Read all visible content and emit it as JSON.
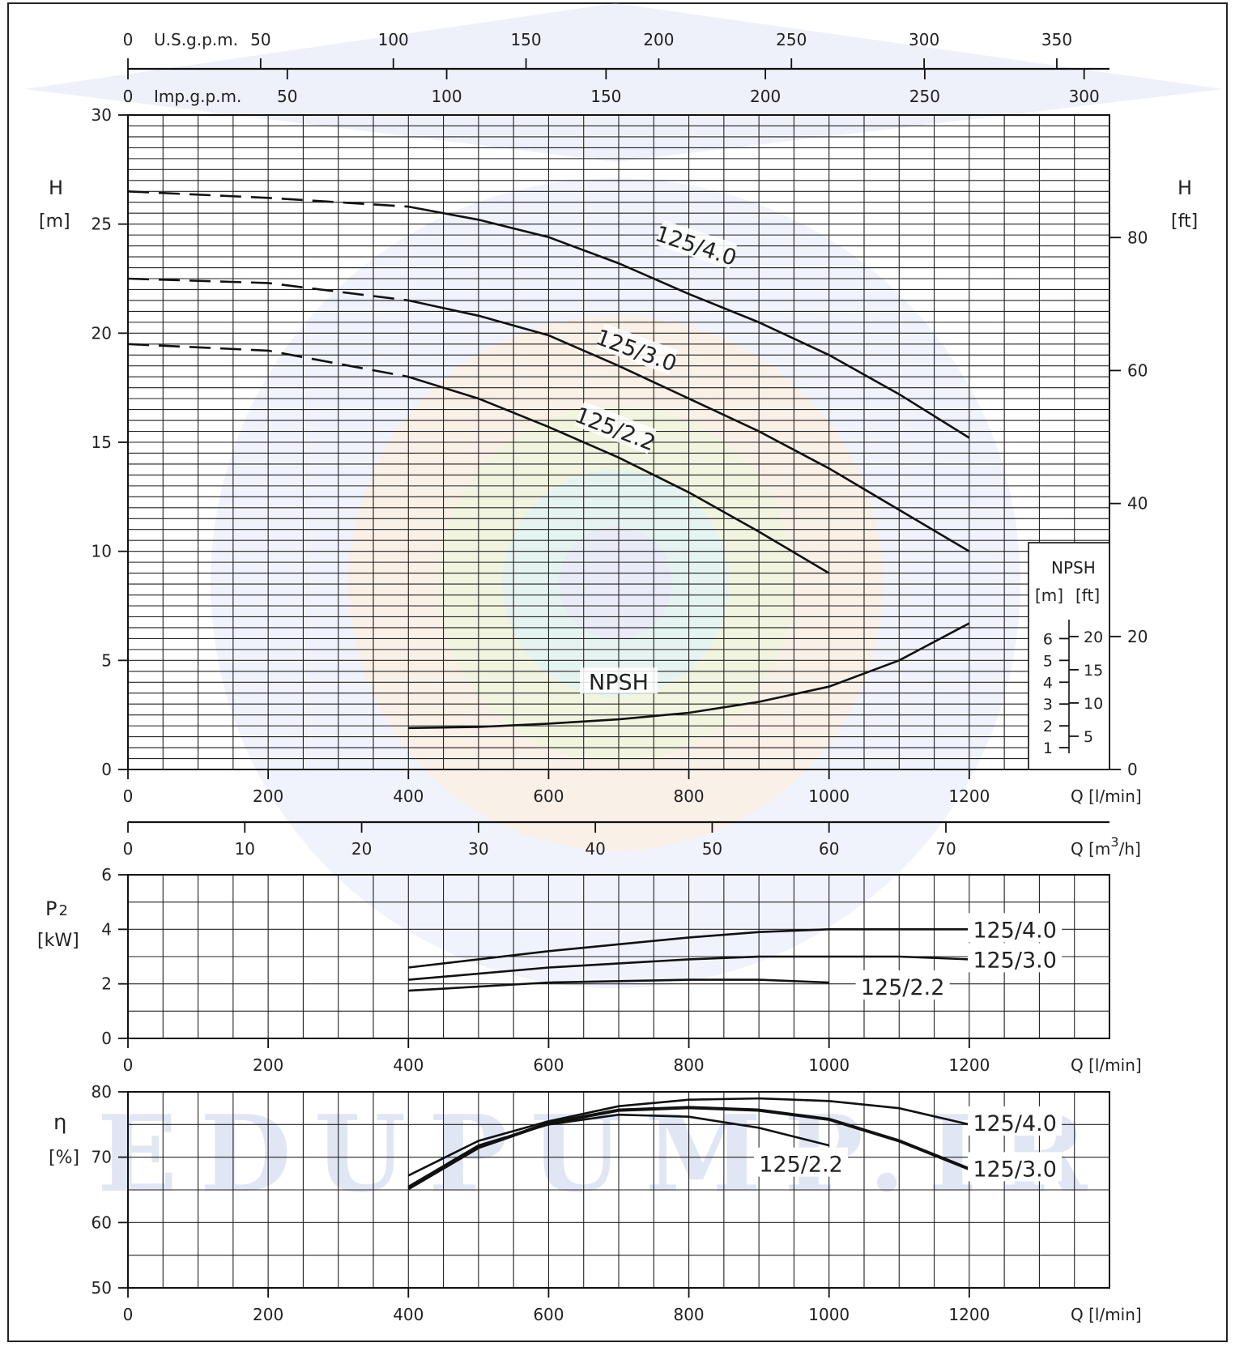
{
  "watermark": {
    "text": "EDUPUMP.IR"
  },
  "top_axes": {
    "usgpm": {
      "unit": "U.S.g.p.m.",
      "ticks": [
        "0",
        "50",
        "100",
        "150",
        "200",
        "250",
        "300",
        "350"
      ]
    },
    "impgpm": {
      "unit": "Imp.g.p.m.",
      "ticks": [
        "0",
        "50",
        "100",
        "150",
        "200",
        "250",
        "300"
      ]
    }
  },
  "head_chart": {
    "ylabel_symbol": "H",
    "ylabel_unit": "[m]",
    "ylabel_right_symbol": "H",
    "ylabel_right_unit": "[ft]",
    "yticks": [
      "0",
      "5",
      "10",
      "15",
      "20",
      "25",
      "30"
    ],
    "ft_ticks": [
      "0",
      "20",
      "40",
      "60",
      "80"
    ],
    "xticks": [
      "0",
      "200",
      "400",
      "600",
      "800",
      "1000",
      "1200"
    ],
    "xlabel": "Q [l/min]",
    "m3h_ticks": [
      "0",
      "10",
      "20",
      "30",
      "40",
      "50",
      "60",
      "70"
    ],
    "m3h_label": "Q [m",
    "m3h_sup": "3",
    "m3h_end": "/h]",
    "npsh_box": {
      "title": "NPSH",
      "unit_m": "[m]",
      "unit_ft": "[ft]",
      "m_ticks": [
        "1",
        "2",
        "3",
        "4",
        "5",
        "6"
      ],
      "ft_ticks": [
        "5",
        "10",
        "15",
        "20"
      ]
    }
  },
  "power_chart": {
    "ylabel_symbol": "P",
    "ylabel_sub": "2",
    "ylabel_unit": "[kW]",
    "yticks": [
      "0",
      "2",
      "4",
      "6"
    ],
    "xticks": [
      "0",
      "200",
      "400",
      "600",
      "800",
      "1000",
      "1200"
    ],
    "xlabel": "Q [l/min]"
  },
  "eff_chart": {
    "ylabel_symbol": "η",
    "ylabel_unit": "[%]",
    "yticks": [
      "50",
      "60",
      "70",
      "80"
    ],
    "xticks": [
      "0",
      "200",
      "400",
      "600",
      "800",
      "1000",
      "1200"
    ],
    "xlabel": "Q [l/min]"
  },
  "chart_data": [
    {
      "type": "line",
      "xlabel": "Q [l/min]",
      "ylabel": "H [m]",
      "xlim": [
        0,
        1400
      ],
      "ylim": [
        0,
        30
      ],
      "grid": true,
      "series": [
        {
          "name": "125/4.0",
          "dashed_x": [
            0,
            200,
            400
          ],
          "dashed_y": [
            26.5,
            26.2,
            25.8
          ],
          "x": [
            400,
            500,
            600,
            700,
            800,
            900,
            1000,
            1100,
            1200
          ],
          "y": [
            25.8,
            25.2,
            24.4,
            23.2,
            21.8,
            20.5,
            19.0,
            17.2,
            15.2
          ]
        },
        {
          "name": "125/3.0",
          "dashed_x": [
            0,
            200,
            400
          ],
          "dashed_y": [
            22.5,
            22.3,
            21.5
          ],
          "x": [
            400,
            500,
            600,
            700,
            800,
            900,
            1000,
            1100,
            1200
          ],
          "y": [
            21.5,
            20.8,
            19.9,
            18.5,
            17.0,
            15.5,
            13.8,
            11.9,
            10.0
          ]
        },
        {
          "name": "125/2.2",
          "dashed_x": [
            0,
            200,
            400
          ],
          "dashed_y": [
            19.5,
            19.2,
            18.0
          ],
          "x": [
            400,
            500,
            600,
            700,
            800,
            900,
            1000
          ],
          "y": [
            18.0,
            17.0,
            15.7,
            14.3,
            12.7,
            10.9,
            9.0
          ]
        },
        {
          "name": "NPSH",
          "x": [
            400,
            500,
            600,
            700,
            800,
            900,
            1000,
            1100,
            1200
          ],
          "y": [
            1.9,
            1.95,
            2.1,
            2.3,
            2.6,
            3.1,
            3.8,
            5.0,
            6.7
          ]
        }
      ]
    },
    {
      "type": "line",
      "xlabel": "Q [l/min]",
      "ylabel": "P2 [kW]",
      "xlim": [
        0,
        1400
      ],
      "ylim": [
        0,
        6
      ],
      "grid": true,
      "series": [
        {
          "name": "125/4.0",
          "x": [
            400,
            600,
            800,
            900,
            1000,
            1100,
            1200
          ],
          "y": [
            2.6,
            3.2,
            3.7,
            3.9,
            4.0,
            4.0,
            4.0
          ]
        },
        {
          "name": "125/3.0",
          "x": [
            400,
            600,
            800,
            900,
            1000,
            1100,
            1200
          ],
          "y": [
            2.15,
            2.6,
            2.9,
            3.0,
            3.0,
            3.0,
            2.9
          ]
        },
        {
          "name": "125/2.2",
          "x": [
            400,
            600,
            800,
            900,
            1000
          ],
          "y": [
            1.75,
            2.05,
            2.15,
            2.15,
            2.05
          ]
        }
      ]
    },
    {
      "type": "line",
      "xlabel": "Q [l/min]",
      "ylabel": "η [%]",
      "xlim": [
        0,
        1400
      ],
      "ylim": [
        50,
        80
      ],
      "grid": true,
      "series": [
        {
          "name": "125/4.0",
          "x": [
            400,
            500,
            600,
            700,
            800,
            900,
            1000,
            1100,
            1200
          ],
          "y": [
            67.2,
            72.5,
            75.5,
            77.8,
            78.8,
            79.0,
            78.6,
            77.5,
            75.0
          ]
        },
        {
          "name": "125/3.0",
          "x": [
            400,
            500,
            600,
            700,
            800,
            900,
            1000,
            1100,
            1200
          ],
          "y": [
            65.2,
            71.5,
            75.2,
            77.2,
            77.6,
            77.2,
            75.8,
            72.5,
            68.2
          ]
        },
        {
          "name": "125/2.2",
          "x": [
            400,
            500,
            600,
            700,
            800,
            900,
            1000
          ],
          "y": [
            65.5,
            71.8,
            75.0,
            76.5,
            76.2,
            74.5,
            71.8
          ]
        }
      ]
    }
  ]
}
